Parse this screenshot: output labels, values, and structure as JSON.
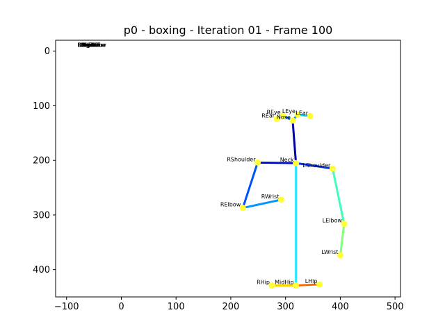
{
  "chart_data": {
    "type": "scatter",
    "title": "p0 - boxing - Iteration 01 - Frame 100",
    "xlabel": "",
    "ylabel": "",
    "xlim": [
      -120,
      510
    ],
    "ylim": [
      450,
      -20
    ],
    "y_inverted": true,
    "grid": false,
    "x_ticks": [
      -100,
      0,
      100,
      200,
      300,
      400,
      500
    ],
    "y_ticks": [
      0,
      100,
      200,
      300,
      400
    ],
    "point_color": "#ffff33",
    "keypoints": [
      {
        "name": "Nose",
        "x": 313,
        "y": 127
      },
      {
        "name": "Neck",
        "x": 319,
        "y": 205
      },
      {
        "name": "RShoulder",
        "x": 249,
        "y": 204
      },
      {
        "name": "RElbow",
        "x": 222,
        "y": 287
      },
      {
        "name": "RWrist",
        "x": 292,
        "y": 272
      },
      {
        "name": "LShoulder",
        "x": 386,
        "y": 215
      },
      {
        "name": "LElbow",
        "x": 407,
        "y": 316
      },
      {
        "name": "LWrist",
        "x": 400,
        "y": 374
      },
      {
        "name": "MidHip",
        "x": 319,
        "y": 429
      },
      {
        "name": "RHip",
        "x": 275,
        "y": 429
      },
      {
        "name": "LHip",
        "x": 362,
        "y": 427
      },
      {
        "name": "REye",
        "x": 295,
        "y": 118
      },
      {
        "name": "LEye",
        "x": 322,
        "y": 116
      },
      {
        "name": "REar",
        "x": 284,
        "y": 124
      },
      {
        "name": "LEar",
        "x": 345,
        "y": 119
      }
    ],
    "stacked_labels": {
      "x": -80,
      "y": -8,
      "names": [
        "RShoulder",
        "RElbow",
        "RWrist",
        "RHip",
        "RKnee",
        "RAnkle",
        "LKnee",
        "LAnkle",
        "RBigToe",
        "LBigToe",
        "RSmallToe",
        "LSmallToe",
        "RHeel",
        "LHeel"
      ]
    },
    "bones": [
      {
        "from": "Nose",
        "to": "Neck",
        "color": "#0000a8"
      },
      {
        "from": "Neck",
        "to": "RShoulder",
        "color": "#0010d8"
      },
      {
        "from": "RShoulder",
        "to": "RElbow",
        "color": "#0050ff"
      },
      {
        "from": "RElbow",
        "to": "RWrist",
        "color": "#0098ff"
      },
      {
        "from": "Neck",
        "to": "LShoulder",
        "color": "#0030ff"
      },
      {
        "from": "LShoulder",
        "to": "LElbow",
        "color": "#3dffb9"
      },
      {
        "from": "LElbow",
        "to": "LWrist",
        "color": "#80ff77"
      },
      {
        "from": "Neck",
        "to": "MidHip",
        "color": "#26e8ff"
      },
      {
        "from": "MidHip",
        "to": "RHip",
        "color": "#ffd400"
      },
      {
        "from": "MidHip",
        "to": "LHip",
        "color": "#ff6a00"
      },
      {
        "from": "Nose",
        "to": "REye",
        "color": "#0070ff"
      },
      {
        "from": "Nose",
        "to": "LEye",
        "color": "#0090ff"
      },
      {
        "from": "REye",
        "to": "REar",
        "color": "#00b4ff"
      },
      {
        "from": "LEye",
        "to": "LEar",
        "color": "#00c8ff"
      }
    ]
  }
}
